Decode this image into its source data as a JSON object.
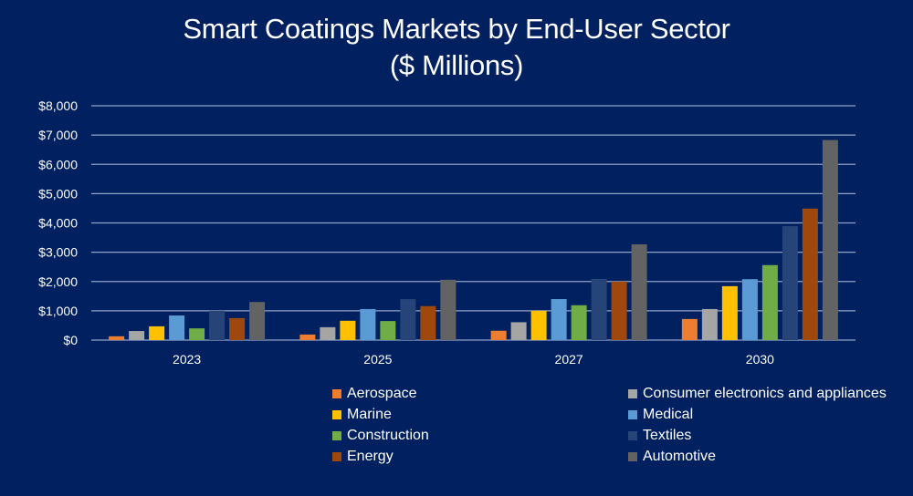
{
  "chart_data": {
    "type": "bar",
    "title": "Smart Coatings Markets by End-User Sector",
    "subtitle": "($ Millions)",
    "xlabel": "",
    "ylabel": "",
    "categories": [
      "2023",
      "2025",
      "2027",
      "2030"
    ],
    "ylim": [
      0,
      8000
    ],
    "yticks": [
      0,
      1000,
      2000,
      3000,
      4000,
      5000,
      6000,
      7000,
      8000
    ],
    "ytick_labels": [
      "$0",
      "$1,000",
      "$2,000",
      "$3,000",
      "$4,000",
      "$5,000",
      "$6,000",
      "$7,000",
      "$8,000"
    ],
    "grid": true,
    "legend_position": "bottom-right",
    "series": [
      {
        "name": "Aerospace",
        "color": "#ED7D31",
        "values": [
          130,
          190,
          320,
          720
        ]
      },
      {
        "name": "Consumer electronics and appliances",
        "color": "#A5A5A5",
        "values": [
          310,
          440,
          610,
          1060
        ]
      },
      {
        "name": "Marine",
        "color": "#FFC000",
        "values": [
          470,
          660,
          1000,
          1840
        ]
      },
      {
        "name": "Medical",
        "color": "#5B9BD5",
        "values": [
          840,
          1060,
          1400,
          2080
        ]
      },
      {
        "name": "Construction",
        "color": "#70AD47",
        "values": [
          400,
          650,
          1190,
          2560
        ]
      },
      {
        "name": "Textiles",
        "color": "#264478",
        "values": [
          1000,
          1400,
          2090,
          3890
        ]
      },
      {
        "name": "Energy",
        "color": "#9E480E",
        "values": [
          750,
          1160,
          2000,
          4490
        ]
      },
      {
        "name": "Automotive",
        "color": "#636363",
        "values": [
          1300,
          2060,
          3270,
          6830
        ]
      }
    ]
  },
  "legend_order": [
    0,
    1,
    2,
    3,
    4,
    5,
    6,
    7
  ],
  "colors": {
    "background": "#002060",
    "gridline": "#8FA3C8",
    "text": "#FFFFFF"
  }
}
